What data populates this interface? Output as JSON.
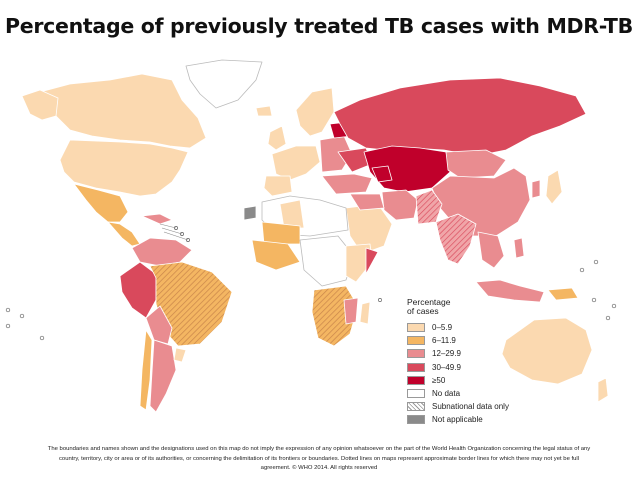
{
  "title": "Percentage of previously treated TB cases with MDR-TB",
  "legend": {
    "title_line1": "Percentage",
    "title_line2": "of cases",
    "items": [
      {
        "label": "0–5.9",
        "color": "#fbd9b0",
        "pattern": "none"
      },
      {
        "label": "6–11.9",
        "color": "#f4b662",
        "pattern": "none"
      },
      {
        "label": "12–29.9",
        "color": "#e98c90",
        "pattern": "none"
      },
      {
        "label": "30–49.9",
        "color": "#d9495c",
        "pattern": "none"
      },
      {
        "label": "≥50",
        "color": "#c0002b",
        "pattern": "none"
      },
      {
        "label": "No data",
        "color": "#ffffff",
        "pattern": "none"
      },
      {
        "label": "Subnational data only",
        "color": "#ffffff",
        "pattern": "hatch"
      },
      {
        "label": "Not applicable",
        "color": "#8a8a8a",
        "pattern": "none"
      }
    ]
  },
  "footnote": {
    "line1": "The boundaries and names shown and the designations used on this map do not imply the expression of any opinion whatsoever on the part of the World Health Organization concerning the legal status of any",
    "line2": "country, territory, city or area or of its authorities, or concerning the delimitation of its frontiers or boundaries.  Dotted lines on maps represent approximate border lines for which there may not yet be full",
    "line3": "agreement. © WHO 2014. All rights reserved"
  }
}
